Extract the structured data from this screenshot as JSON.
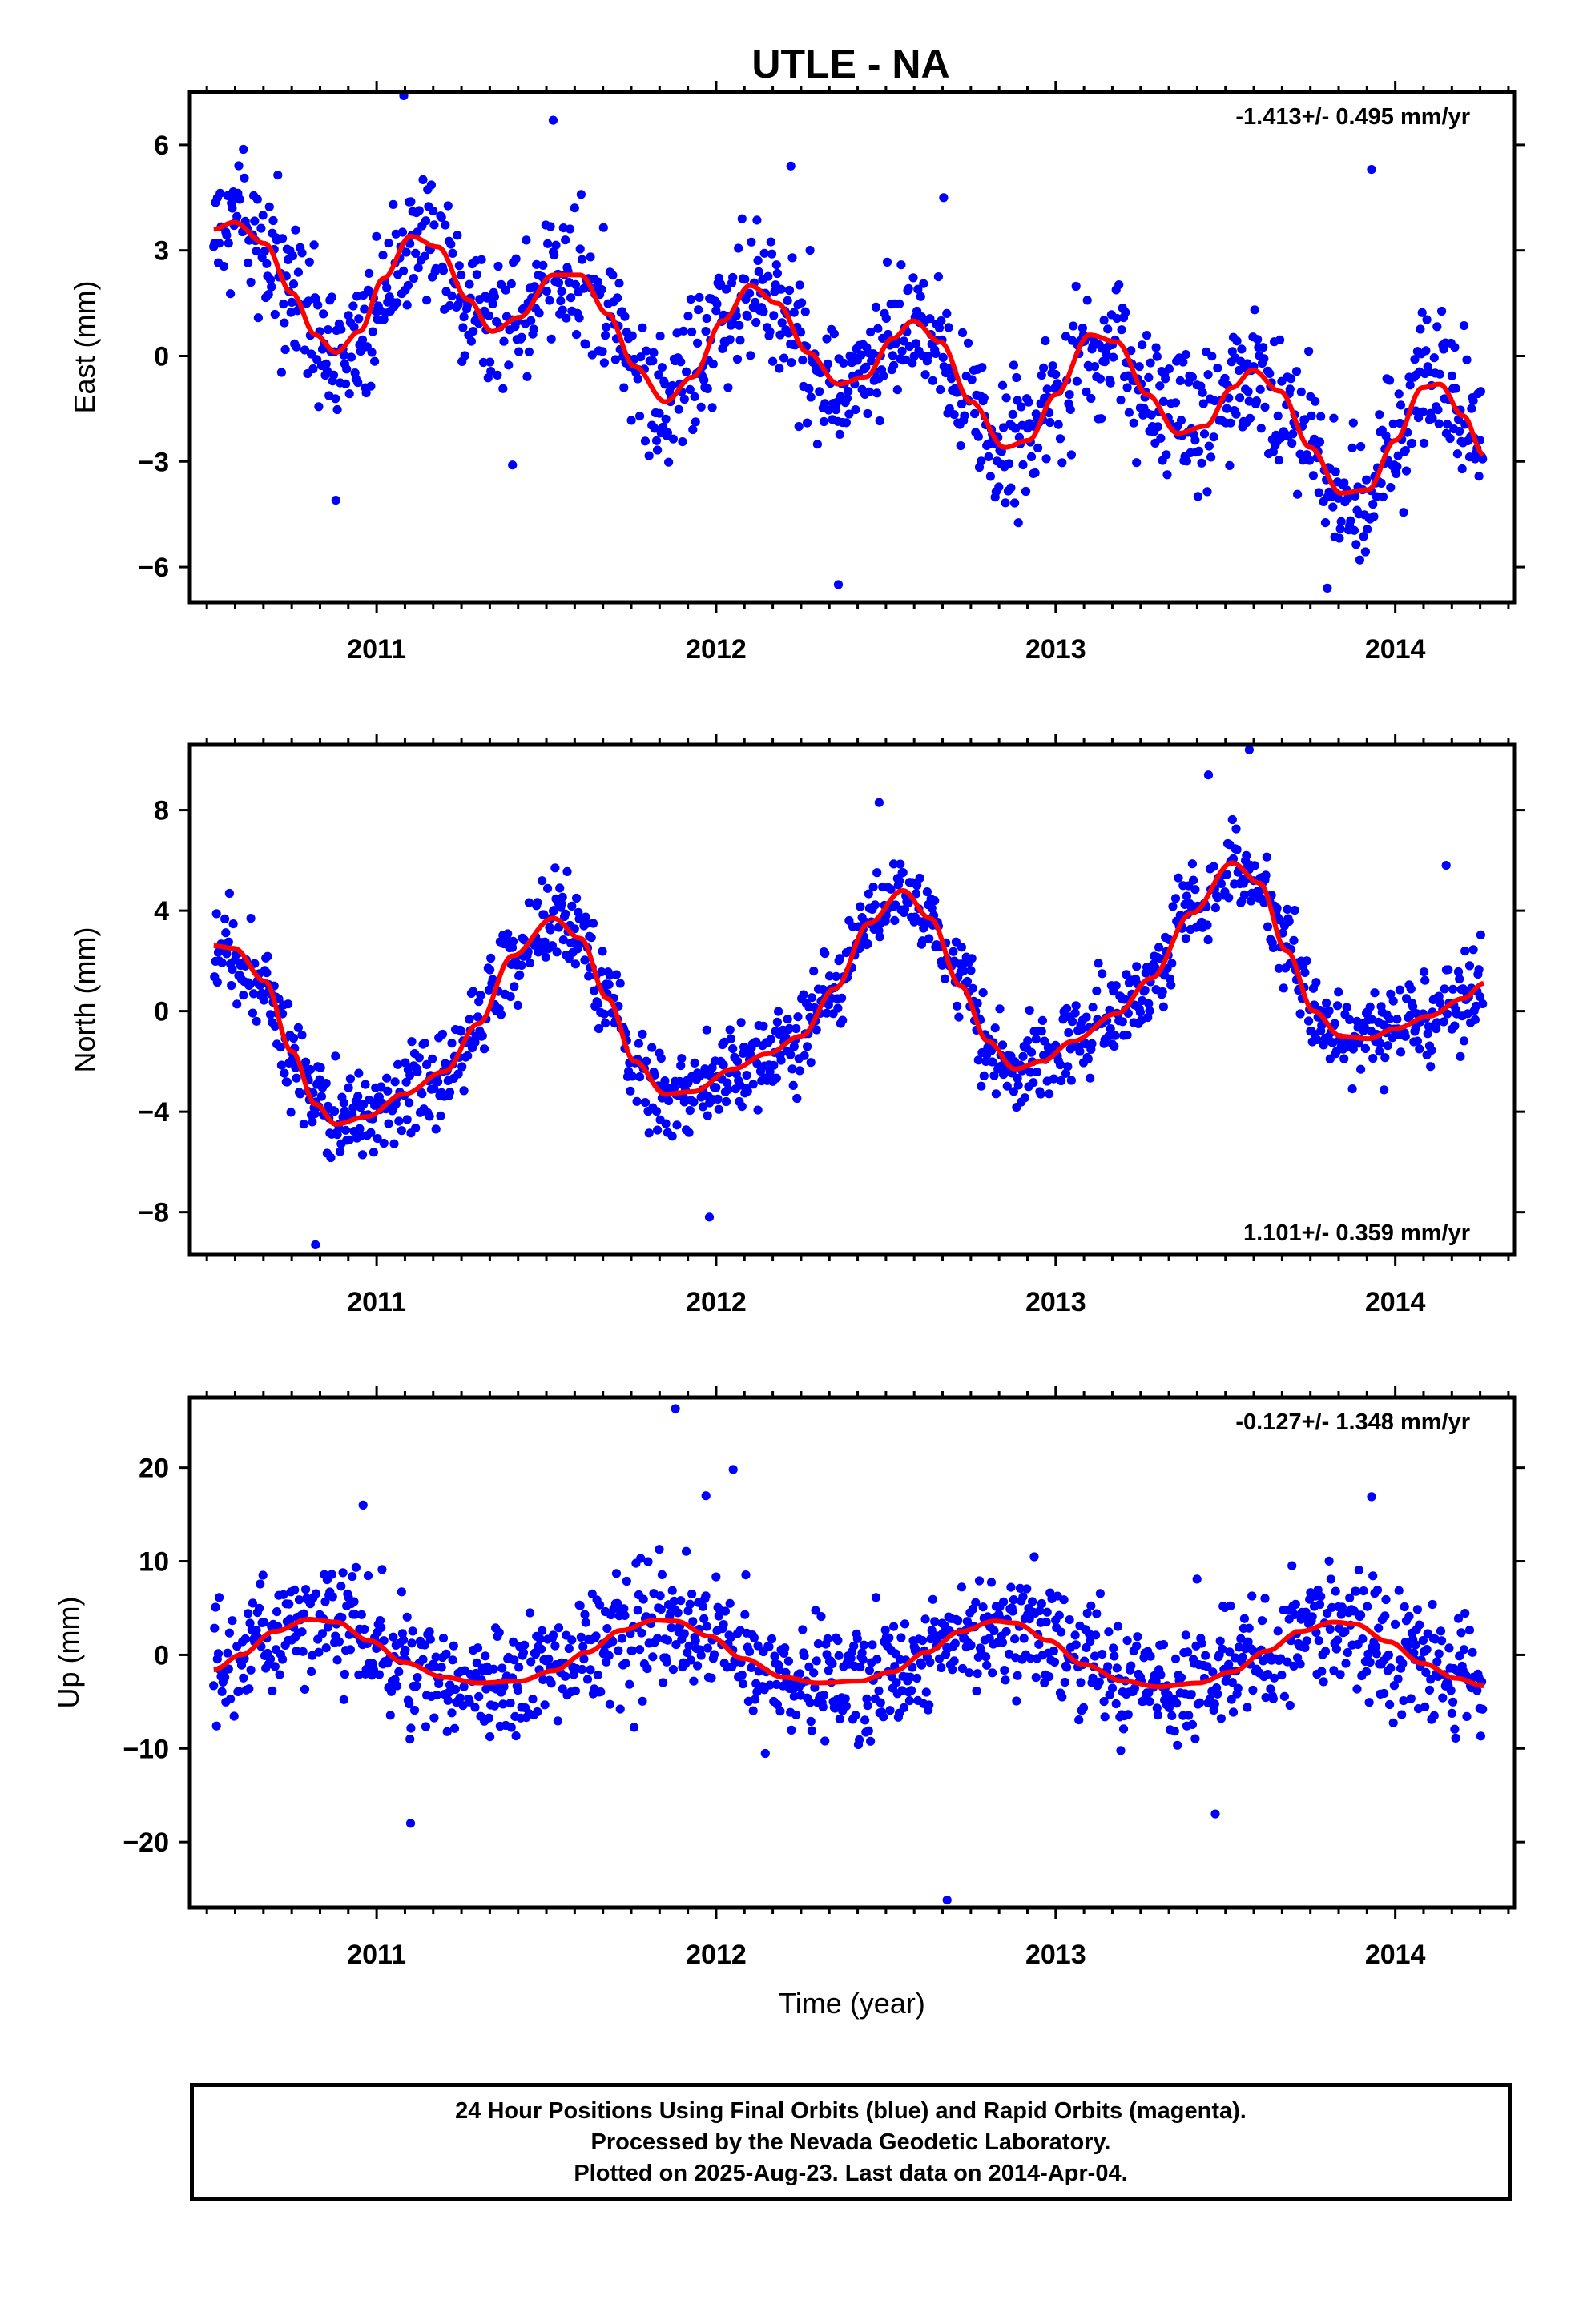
{
  "title": "UTLE - NA",
  "chart_data": [
    {
      "type": "scatter",
      "component": "East",
      "ylabel": "East (mm)",
      "xlabel": "",
      "rate_label": "-1.413+/- 0.495 mm/yr",
      "rate_position": "top-right",
      "xlim": [
        2010.45,
        2014.35
      ],
      "ylim": [
        -7,
        7.5
      ],
      "yticks": [
        -6,
        -3,
        0,
        3,
        6
      ],
      "xticks": [
        2011,
        2012,
        2013,
        2014
      ],
      "x_tick_labels": [
        "2011",
        "2012",
        "2013",
        "2014"
      ],
      "y_tick_labels": [
        "−6",
        "−3",
        "0",
        "3",
        "6"
      ],
      "x_start": 2010.52,
      "x_end": 2014.26,
      "trend_mm_per_yr": -1.413,
      "fit_curve": [
        [
          2010.52,
          3.6
        ],
        [
          2010.58,
          3.8
        ],
        [
          2010.67,
          3.2
        ],
        [
          2010.75,
          1.8
        ],
        [
          2010.82,
          0.6
        ],
        [
          2010.88,
          0.1
        ],
        [
          2010.95,
          0.7
        ],
        [
          2011.02,
          2.2
        ],
        [
          2011.1,
          3.4
        ],
        [
          2011.18,
          3.1
        ],
        [
          2011.27,
          1.6
        ],
        [
          2011.34,
          0.7
        ],
        [
          2011.42,
          1.1
        ],
        [
          2011.52,
          2.3
        ],
        [
          2011.6,
          2.3
        ],
        [
          2011.68,
          1.2
        ],
        [
          2011.76,
          -0.3
        ],
        [
          2011.85,
          -1.3
        ],
        [
          2011.93,
          -0.6
        ],
        [
          2012.02,
          1.0
        ],
        [
          2012.1,
          2.0
        ],
        [
          2012.18,
          1.5
        ],
        [
          2012.27,
          0.1
        ],
        [
          2012.36,
          -0.8
        ],
        [
          2012.44,
          -0.6
        ],
        [
          2012.52,
          0.5
        ],
        [
          2012.58,
          1.0
        ],
        [
          2012.66,
          0.4
        ],
        [
          2012.75,
          -1.3
        ],
        [
          2012.85,
          -2.6
        ],
        [
          2012.92,
          -2.4
        ],
        [
          2013.0,
          -1.1
        ],
        [
          2013.1,
          0.6
        ],
        [
          2013.18,
          0.4
        ],
        [
          2013.27,
          -1.1
        ],
        [
          2013.36,
          -2.2
        ],
        [
          2013.44,
          -2.0
        ],
        [
          2013.52,
          -0.9
        ],
        [
          2013.58,
          -0.4
        ],
        [
          2013.66,
          -1.0
        ],
        [
          2013.75,
          -2.6
        ],
        [
          2013.84,
          -3.9
        ],
        [
          2013.92,
          -3.8
        ],
        [
          2014.0,
          -2.4
        ],
        [
          2014.08,
          -0.9
        ],
        [
          2014.13,
          -0.8
        ],
        [
          2014.2,
          -1.7
        ],
        [
          2014.26,
          -2.8
        ]
      ],
      "point_spread_mm": 1.4,
      "outliers": [
        [
          2011.08,
          7.4
        ],
        [
          2011.52,
          6.7
        ],
        [
          2012.22,
          5.4
        ],
        [
          2012.36,
          -6.5
        ],
        [
          2013.8,
          -6.6
        ],
        [
          2013.93,
          5.3
        ],
        [
          2012.67,
          4.5
        ],
        [
          2010.88,
          -4.1
        ],
        [
          2011.4,
          -3.1
        ]
      ],
      "grid": false,
      "legend": "none"
    },
    {
      "type": "scatter",
      "component": "North",
      "ylabel": "North (mm)",
      "xlabel": "",
      "rate_label": "1.101+/- 0.359 mm/yr",
      "rate_position": "bottom-right",
      "xlim": [
        2010.45,
        2014.35
      ],
      "ylim": [
        -9.7,
        10.6
      ],
      "yticks": [
        -8,
        -4,
        0,
        4,
        8
      ],
      "xticks": [
        2011,
        2012,
        2013,
        2014
      ],
      "x_tick_labels": [
        "2011",
        "2012",
        "2013",
        "2014"
      ],
      "y_tick_labels": [
        "−8",
        "−4",
        "0",
        "4",
        "8"
      ],
      "x_start": 2010.52,
      "x_end": 2014.26,
      "trend_mm_per_yr": 1.101,
      "fit_curve": [
        [
          2010.52,
          2.6
        ],
        [
          2010.58,
          2.5
        ],
        [
          2010.67,
          1.2
        ],
        [
          2010.75,
          -1.6
        ],
        [
          2010.82,
          -3.7
        ],
        [
          2010.88,
          -4.5
        ],
        [
          2010.97,
          -4.2
        ],
        [
          2011.08,
          -3.3
        ],
        [
          2011.2,
          -2.4
        ],
        [
          2011.3,
          -0.5
        ],
        [
          2011.4,
          2.2
        ],
        [
          2011.52,
          3.7
        ],
        [
          2011.6,
          2.9
        ],
        [
          2011.68,
          0.5
        ],
        [
          2011.76,
          -2.0
        ],
        [
          2011.85,
          -3.3
        ],
        [
          2011.93,
          -3.2
        ],
        [
          2012.05,
          -2.3
        ],
        [
          2012.15,
          -1.7
        ],
        [
          2012.25,
          -1.0
        ],
        [
          2012.35,
          0.9
        ],
        [
          2012.45,
          3.5
        ],
        [
          2012.55,
          4.8
        ],
        [
          2012.63,
          3.7
        ],
        [
          2012.72,
          1.0
        ],
        [
          2012.8,
          -1.2
        ],
        [
          2012.88,
          -2.3
        ],
        [
          2012.96,
          -2.0
        ],
        [
          2013.05,
          -1.2
        ],
        [
          2013.18,
          -0.1
        ],
        [
          2013.28,
          1.3
        ],
        [
          2013.4,
          3.9
        ],
        [
          2013.52,
          5.9
        ],
        [
          2013.6,
          5.1
        ],
        [
          2013.68,
          2.4
        ],
        [
          2013.76,
          0.0
        ],
        [
          2013.84,
          -1.0
        ],
        [
          2013.92,
          -1.1
        ],
        [
          2014.0,
          -0.7
        ],
        [
          2014.1,
          -0.2
        ],
        [
          2014.2,
          0.5
        ],
        [
          2014.26,
          1.1
        ]
      ],
      "point_spread_mm": 1.2,
      "outliers": [
        [
          2010.82,
          -9.3
        ],
        [
          2011.98,
          -8.2
        ],
        [
          2013.57,
          10.4
        ],
        [
          2013.45,
          9.4
        ],
        [
          2012.48,
          8.3
        ],
        [
          2014.15,
          5.8
        ]
      ],
      "grid": false,
      "legend": "none"
    },
    {
      "type": "scatter",
      "component": "Up",
      "ylabel": "Up (mm)",
      "xlabel": "Time (year)",
      "rate_label": "-0.127+/- 1.348 mm/yr",
      "rate_position": "top-right",
      "xlim": [
        2010.45,
        2014.35
      ],
      "ylim": [
        -27,
        27.5
      ],
      "yticks": [
        -20,
        -10,
        0,
        10,
        20
      ],
      "xticks": [
        2011,
        2012,
        2013,
        2014
      ],
      "x_tick_labels": [
        "2011",
        "2012",
        "2013",
        "2014"
      ],
      "y_tick_labels": [
        "−20",
        "−10",
        "0",
        "10",
        "20"
      ],
      "x_start": 2010.52,
      "x_end": 2014.26,
      "trend_mm_per_yr": -0.127,
      "fit_curve": [
        [
          2010.52,
          -1.6
        ],
        [
          2010.6,
          0.0
        ],
        [
          2010.7,
          2.5
        ],
        [
          2010.8,
          3.8
        ],
        [
          2010.88,
          3.5
        ],
        [
          2010.98,
          1.5
        ],
        [
          2011.08,
          -0.8
        ],
        [
          2011.2,
          -2.4
        ],
        [
          2011.3,
          -3.0
        ],
        [
          2011.42,
          -2.8
        ],
        [
          2011.52,
          -1.7
        ],
        [
          2011.62,
          0.3
        ],
        [
          2011.72,
          2.6
        ],
        [
          2011.82,
          3.7
        ],
        [
          2011.88,
          3.6
        ],
        [
          2011.98,
          2.0
        ],
        [
          2012.08,
          -0.4
        ],
        [
          2012.2,
          -2.4
        ],
        [
          2012.3,
          -3.0
        ],
        [
          2012.42,
          -2.8
        ],
        [
          2012.52,
          -1.8
        ],
        [
          2012.62,
          0.3
        ],
        [
          2012.72,
          2.5
        ],
        [
          2012.82,
          3.6
        ],
        [
          2012.88,
          3.4
        ],
        [
          2012.98,
          1.5
        ],
        [
          2013.08,
          -1.0
        ],
        [
          2013.2,
          -2.8
        ],
        [
          2013.3,
          -3.4
        ],
        [
          2013.42,
          -3.0
        ],
        [
          2013.52,
          -1.8
        ],
        [
          2013.62,
          0.4
        ],
        [
          2013.72,
          2.5
        ],
        [
          2013.82,
          3.5
        ],
        [
          2013.88,
          3.3
        ],
        [
          2013.98,
          1.4
        ],
        [
          2014.08,
          -0.9
        ],
        [
          2014.18,
          -2.5
        ],
        [
          2014.26,
          -3.3
        ]
      ],
      "point_spread_mm": 4.5,
      "outliers": [
        [
          2011.88,
          26.3
        ],
        [
          2012.68,
          -26.2
        ],
        [
          2012.05,
          19.8
        ],
        [
          2011.1,
          -18.0
        ],
        [
          2013.47,
          -17.0
        ],
        [
          2011.97,
          17.0
        ],
        [
          2013.93,
          16.9
        ],
        [
          2010.96,
          16.0
        ]
      ],
      "grid": false,
      "legend": "none"
    }
  ],
  "footer": {
    "line1": "24 Hour Positions Using Final Orbits (blue) and Rapid Orbits (magenta).",
    "line2": "Processed by the Nevada Geodetic Laboratory.",
    "line3": "Plotted on 2025-Aug-23. Last data on 2014-Apr-04."
  },
  "colors": {
    "final_orbits": "#0000ff",
    "rapid_orbits": "#ff00ff",
    "fit_line": "#ff0000",
    "axes": "#000000"
  }
}
